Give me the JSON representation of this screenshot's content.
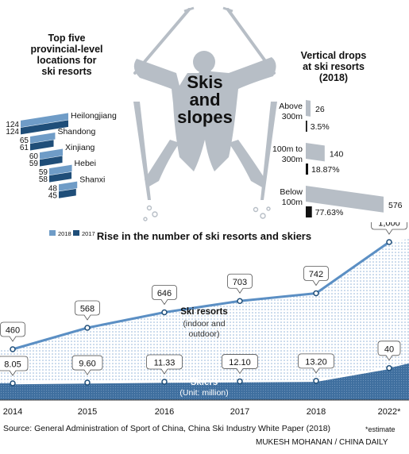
{
  "title": "Skis and slopes",
  "title_lines": [
    "Skis",
    "and",
    "slopes"
  ],
  "colors": {
    "dark_blue": "#1f4e79",
    "light_blue": "#6f9cc7",
    "line_blue": "#5b8fc4",
    "grey": "#b7bec6",
    "black": "#111111"
  },
  "chart_data": [
    {
      "type": "bar",
      "title": "Top five provincial-level locations for ski resorts",
      "title_lines": [
        "Top five",
        "provincial-level",
        "locations for",
        "ski resorts"
      ],
      "categories": [
        "Heilongjiang",
        "Shandong",
        "Xinjiang",
        "Hebei",
        "Shanxi"
      ],
      "series": [
        {
          "name": "2018",
          "values": [
            124,
            65,
            60,
            59,
            48
          ],
          "color": "#6f9cc7"
        },
        {
          "name": "2017",
          "values": [
            124,
            61,
            59,
            58,
            45
          ],
          "color": "#1f4e79"
        }
      ],
      "legend_position": "bottom"
    },
    {
      "type": "bar",
      "title": "Vertical drops at ski resorts (2018)",
      "title_lines": [
        "Vertical drops",
        "at ski resorts",
        "(2018)"
      ],
      "categories": [
        "Above 300m",
        "100m to 300m",
        "Below 100m"
      ],
      "category_lines": [
        [
          "Above",
          "300m"
        ],
        [
          "100m to",
          "300m"
        ],
        [
          "Below",
          "100m"
        ]
      ],
      "values": [
        26,
        140,
        576
      ],
      "percentages": [
        "3.5%",
        "18.87%",
        "77.63%"
      ],
      "percentage_values": [
        3.5,
        18.87,
        77.63
      ]
    },
    {
      "type": "area",
      "title": "Rise in the number of ski resorts and skiers",
      "x": [
        "2014",
        "2015",
        "2016",
        "2017",
        "2018",
        "2022*"
      ],
      "series": [
        {
          "name": "Ski resorts",
          "sublabel_lines": [
            "(indoor and",
            "outdoor)"
          ],
          "values": [
            460,
            568,
            646,
            703,
            742,
            1000
          ],
          "labels": [
            "460",
            "568",
            "646",
            "703",
            "742",
            "1,000"
          ]
        },
        {
          "name": "Skiers",
          "sublabel": "(Unit: million)",
          "values": [
            8.05,
            9.6,
            11.33,
            12.1,
            13.2,
            40
          ],
          "labels": [
            "8.05",
            "9.60",
            "11.33",
            "12.10",
            "13.20",
            "40"
          ]
        }
      ]
    }
  ],
  "footer": {
    "source": "Source: General Administration of Sport of China, China Ski Industry White Paper (2018)",
    "note": "*estimate",
    "credit": "MUKESH MOHANAN / CHINA DAILY"
  }
}
